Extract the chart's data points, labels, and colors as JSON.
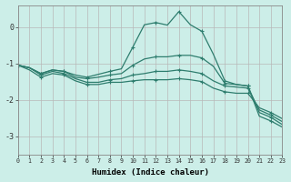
{
  "title": "",
  "xlabel": "Humidex (Indice chaleur)",
  "ylabel": "",
  "bg_color": "#cceee8",
  "grid_color": "#c0c0c0",
  "line_color": "#2e7d6e",
  "xlim": [
    0,
    23
  ],
  "ylim": [
    -3.5,
    0.6
  ],
  "yticks": [
    -3,
    -2,
    -1,
    0
  ],
  "xticks": [
    0,
    1,
    2,
    3,
    4,
    5,
    6,
    7,
    8,
    9,
    10,
    11,
    12,
    13,
    14,
    15,
    16,
    17,
    18,
    19,
    20,
    21,
    22,
    23
  ],
  "lines": [
    {
      "x": [
        0,
        1,
        2,
        3,
        4,
        5,
        6,
        7,
        8,
        9,
        10,
        11,
        12,
        13,
        14,
        15,
        16,
        17,
        18,
        19,
        20,
        21,
        22,
        23
      ],
      "y": [
        -1.05,
        -1.12,
        -1.28,
        -1.18,
        -1.22,
        -1.32,
        -1.38,
        -1.3,
        -1.22,
        -1.15,
        -0.55,
        0.06,
        0.12,
        0.05,
        0.42,
        0.06,
        -0.12,
        -0.75,
        -1.48,
        -1.58,
        -1.62,
        -2.45,
        -2.58,
        -2.75
      ]
    },
    {
      "x": [
        0,
        1,
        2,
        3,
        4,
        5,
        6,
        7,
        8,
        9,
        10,
        11,
        12,
        13,
        14,
        15,
        16,
        17,
        18,
        19,
        20,
        21,
        22,
        23
      ],
      "y": [
        -1.05,
        -1.12,
        -1.28,
        -1.18,
        -1.22,
        -1.38,
        -1.42,
        -1.38,
        -1.32,
        -1.28,
        -1.05,
        -0.88,
        -0.82,
        -0.82,
        -0.78,
        -0.78,
        -0.85,
        -1.08,
        -1.55,
        -1.58,
        -1.62,
        -2.35,
        -2.48,
        -2.68
      ]
    },
    {
      "x": [
        0,
        1,
        2,
        3,
        4,
        5,
        6,
        7,
        8,
        9,
        10,
        11,
        12,
        13,
        14,
        15,
        16,
        17,
        18,
        19,
        20,
        21,
        22,
        23
      ],
      "y": [
        -1.05,
        -1.12,
        -1.32,
        -1.22,
        -1.28,
        -1.42,
        -1.52,
        -1.52,
        -1.45,
        -1.42,
        -1.32,
        -1.28,
        -1.22,
        -1.22,
        -1.18,
        -1.22,
        -1.28,
        -1.48,
        -1.62,
        -1.65,
        -1.68,
        -2.28,
        -2.42,
        -2.6
      ]
    },
    {
      "x": [
        0,
        1,
        2,
        3,
        4,
        5,
        6,
        7,
        8,
        9,
        10,
        11,
        12,
        13,
        14,
        15,
        16,
        17,
        18,
        19,
        20,
        21,
        22,
        23
      ],
      "y": [
        -1.05,
        -1.18,
        -1.38,
        -1.28,
        -1.32,
        -1.48,
        -1.58,
        -1.58,
        -1.52,
        -1.52,
        -1.48,
        -1.45,
        -1.45,
        -1.45,
        -1.42,
        -1.45,
        -1.5,
        -1.68,
        -1.78,
        -1.82,
        -1.82,
        -2.22,
        -2.35,
        -2.52
      ]
    }
  ]
}
